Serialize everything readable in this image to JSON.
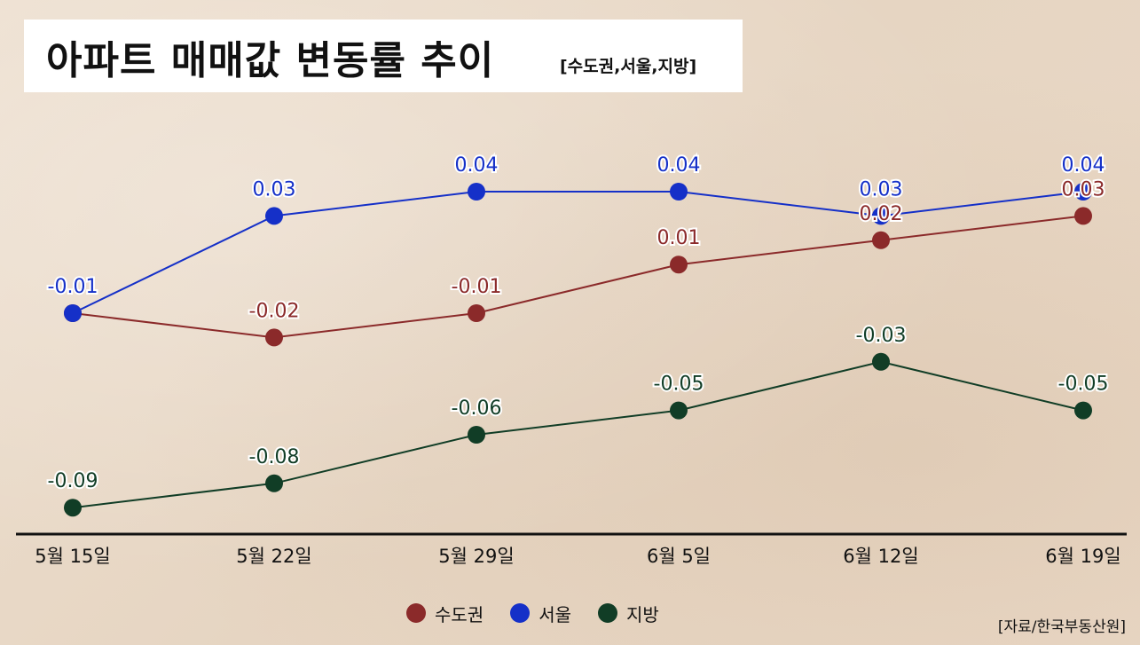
{
  "title": {
    "main": "아파트 매매값 변동률 추이",
    "sub": "[수도권,서울,지방]"
  },
  "source": "[자료/한국부동산원]",
  "chart_data": {
    "type": "line",
    "categories": [
      "5월 15일",
      "5월 22일",
      "5월 29일",
      "6월 5일",
      "6월 12일",
      "6월 19일"
    ],
    "series": [
      {
        "name": "수도권",
        "color": "#8b2a2a",
        "values": [
          -0.01,
          -0.02,
          -0.01,
          0.01,
          0.02,
          0.03
        ],
        "labels": [
          "",
          "-0.02",
          "-0.01",
          "0.01",
          "0.02",
          "0.03"
        ]
      },
      {
        "name": "서울",
        "color": "#1530c8",
        "values": [
          -0.01,
          0.03,
          0.04,
          0.04,
          0.03,
          0.04
        ],
        "labels": [
          "-0.01",
          "0.03",
          "0.04",
          "0.04",
          "0.03",
          "0.04"
        ]
      },
      {
        "name": "지방",
        "color": "#113d26",
        "values": [
          -0.09,
          -0.08,
          -0.06,
          -0.05,
          -0.03,
          -0.05
        ],
        "labels": [
          "-0.09",
          "-0.08",
          "-0.06",
          "-0.05",
          "-0.03",
          "-0.05"
        ]
      }
    ],
    "legend_position": "bottom-center",
    "grid": false
  }
}
